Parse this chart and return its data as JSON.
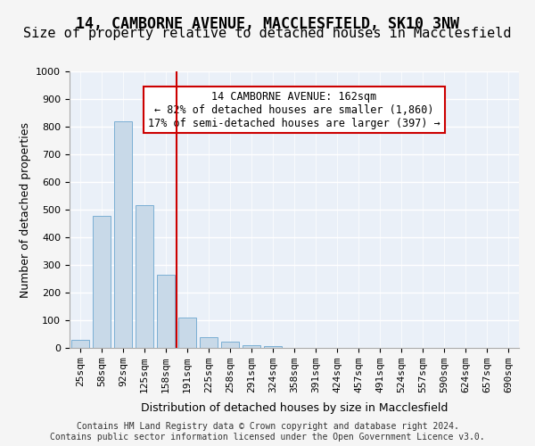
{
  "title1": "14, CAMBORNE AVENUE, MACCLESFIELD, SK10 3NW",
  "title2": "Size of property relative to detached houses in Macclesfield",
  "xlabel": "Distribution of detached houses by size in Macclesfield",
  "ylabel": "Number of detached properties",
  "categories": [
    "25sqm",
    "58sqm",
    "92sqm",
    "125sqm",
    "158sqm",
    "191sqm",
    "225sqm",
    "258sqm",
    "291sqm",
    "324sqm",
    "358sqm",
    "391sqm",
    "424sqm",
    "457sqm",
    "491sqm",
    "524sqm",
    "557sqm",
    "590sqm",
    "624sqm",
    "657sqm",
    "690sqm"
  ],
  "values": [
    28,
    478,
    820,
    515,
    265,
    110,
    38,
    22,
    10,
    7,
    0,
    0,
    0,
    0,
    0,
    0,
    0,
    0,
    0,
    0,
    0
  ],
  "bar_color": "#c8d9e8",
  "bar_edge_color": "#7bafd4",
  "vline_x": 4,
  "vline_color": "#cc0000",
  "annotation_text": "14 CAMBORNE AVENUE: 162sqm\n← 82% of detached houses are smaller (1,860)\n17% of semi-detached houses are larger (397) →",
  "annotation_box_color": "#ffffff",
  "annotation_box_edge": "#cc0000",
  "ylim": [
    0,
    1000
  ],
  "yticks": [
    0,
    100,
    200,
    300,
    400,
    500,
    600,
    700,
    800,
    900,
    1000
  ],
  "background_color": "#eaf0f8",
  "grid_color": "#ffffff",
  "footer": "Contains HM Land Registry data © Crown copyright and database right 2024.\nContains public sector information licensed under the Open Government Licence v3.0.",
  "title1_fontsize": 12,
  "title2_fontsize": 11,
  "xlabel_fontsize": 9,
  "ylabel_fontsize": 9,
  "tick_fontsize": 8,
  "annotation_fontsize": 8.5,
  "footer_fontsize": 7
}
